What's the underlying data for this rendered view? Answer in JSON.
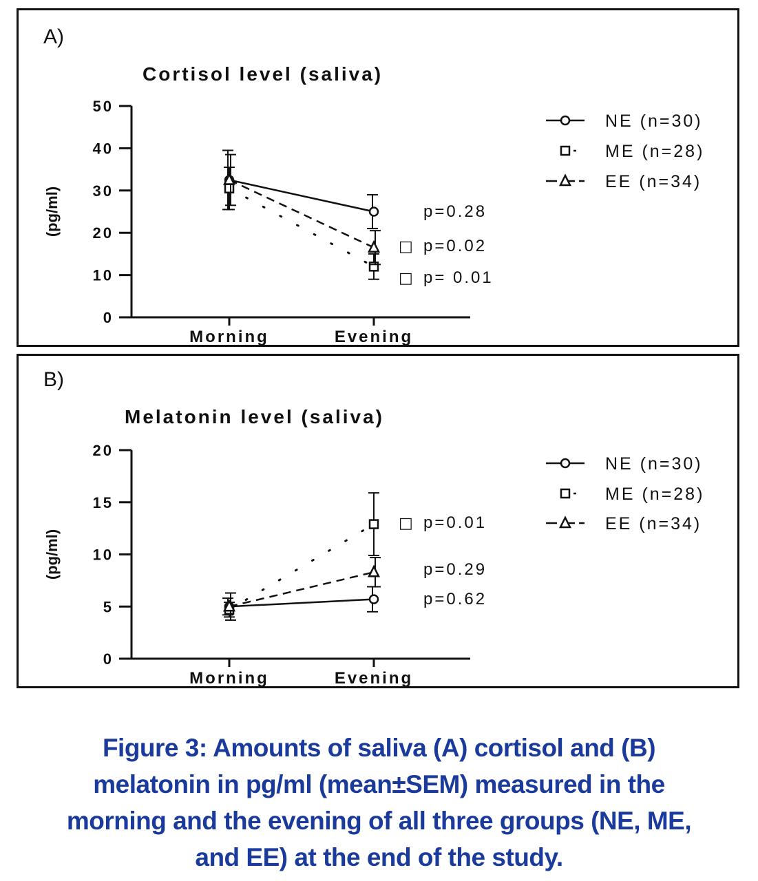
{
  "chart_data": [
    {
      "type": "line",
      "panel_label": "A)",
      "title": "Cortisol level (saliva)",
      "xlabel": "",
      "ylabel": "(pg/ml)",
      "categories": [
        "Morning",
        "Evening"
      ],
      "ylim": [
        0,
        50
      ],
      "yticks": [
        "0",
        "10",
        "20",
        "30",
        "40",
        "50"
      ],
      "series": [
        {
          "name": "NE (n=30)",
          "marker": "circle",
          "line": "solid",
          "values": [
            32.5,
            25
          ],
          "errors": [
            7,
            4
          ]
        },
        {
          "name": "ME (n=28)",
          "marker": "square",
          "line": "dotted",
          "values": [
            30.5,
            12
          ],
          "errors": [
            5,
            3
          ]
        },
        {
          "name": "EE (n=34)",
          "marker": "triangle",
          "line": "dashed",
          "values": [
            32.5,
            16.5
          ],
          "errors": [
            6,
            4
          ]
        }
      ],
      "annotations": [
        {
          "text": "p=0.28",
          "marker": ""
        },
        {
          "text": "p=0.02",
          "marker": "□"
        },
        {
          "text": "p= 0.01",
          "marker": "□"
        }
      ],
      "legend": "right"
    },
    {
      "type": "line",
      "panel_label": "B)",
      "title": "Melatonin level (saliva)",
      "xlabel": "",
      "ylabel": "(pg/ml)",
      "categories": [
        "Morning",
        "Evening"
      ],
      "ylim": [
        0,
        20
      ],
      "yticks": [
        "0",
        "5",
        "10",
        "15",
        "20"
      ],
      "series": [
        {
          "name": "NE (n=30)",
          "marker": "circle",
          "line": "solid",
          "values": [
            5,
            5.7
          ],
          "errors": [
            0.8,
            1.2
          ]
        },
        {
          "name": "ME (n=28)",
          "marker": "square",
          "line": "dotted",
          "values": [
            4.7,
            12.9
          ],
          "errors": [
            0.7,
            3
          ]
        },
        {
          "name": "EE (n=34)",
          "marker": "triangle",
          "line": "dashed",
          "values": [
            5,
            8.3
          ],
          "errors": [
            1.3,
            1.4
          ]
        }
      ],
      "annotations": [
        {
          "text": "p=0.01",
          "marker": "□"
        },
        {
          "text": "p=0.29",
          "marker": ""
        },
        {
          "text": "p=0.62",
          "marker": ""
        }
      ],
      "legend": "right"
    }
  ],
  "caption": [
    "Figure 3: Amounts of saliva (A) cortisol and (B)",
    "melatonin in pg/ml (mean±SEM) measured in the",
    "morning and the evening of all three groups (NE, ME,",
    "and EE) at the end of the study."
  ]
}
